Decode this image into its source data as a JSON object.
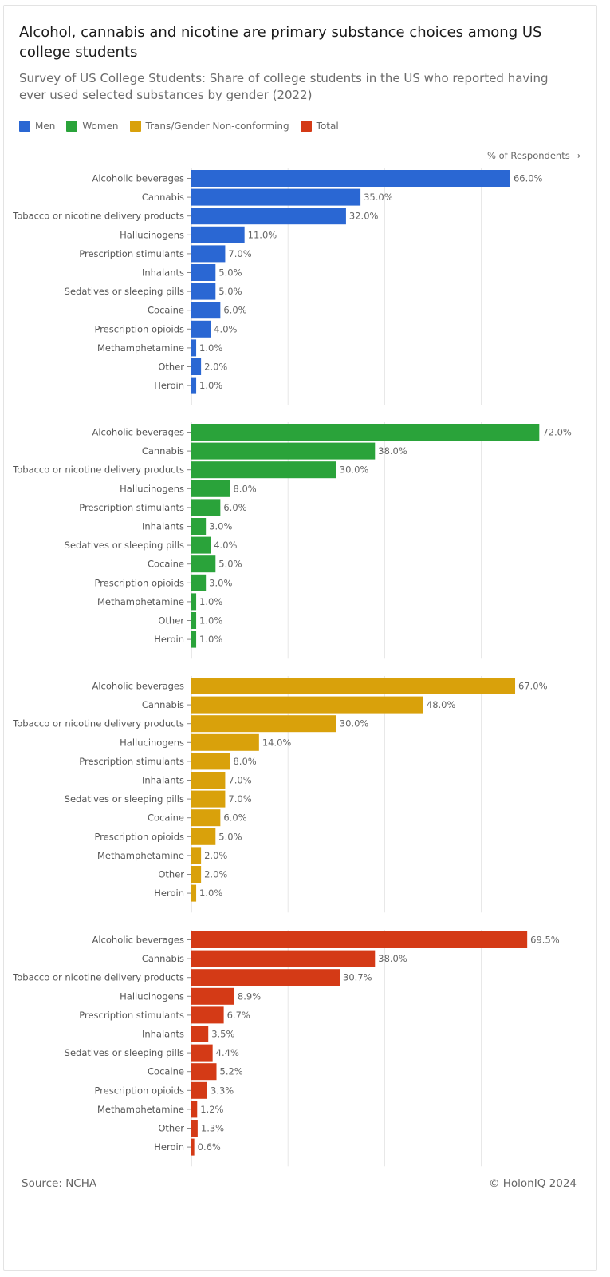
{
  "title": "Alcohol, cannabis and nicotine are primary substance choices among US college students",
  "subtitle": "Survey of US College Students: Share of college students in the US who reported having ever used selected substances by gender (2022)",
  "axis_note": "% of Respondents →",
  "source": "Source: NCHA",
  "copyright": "© HolonIQ 2024",
  "legend": [
    {
      "label": "Men",
      "color": "#2a67d3"
    },
    {
      "label": "Women",
      "color": "#2aa33a"
    },
    {
      "label": "Trans/Gender Non-conforming",
      "color": "#d9a10b"
    },
    {
      "label": "Total",
      "color": "#d43a16"
    }
  ],
  "chart_data": {
    "type": "bar",
    "orientation": "horizontal",
    "x_unit": "% of Respondents",
    "xlim": [
      0,
      75
    ],
    "grid": true,
    "legend_position": "top-left",
    "categories": [
      "Alcoholic beverages",
      "Cannabis",
      "Tobacco or nicotine delivery products",
      "Hallucinogens",
      "Prescription stimulants",
      "Inhalants",
      "Sedatives or sleeping pills",
      "Cocaine",
      "Prescription opioids",
      "Methamphetamine",
      "Other",
      "Heroin"
    ],
    "series": [
      {
        "name": "Men",
        "color": "#2a67d3",
        "values": [
          66.0,
          35.0,
          32.0,
          11.0,
          7.0,
          5.0,
          5.0,
          6.0,
          4.0,
          1.0,
          2.0,
          1.0
        ]
      },
      {
        "name": "Women",
        "color": "#2aa33a",
        "values": [
          72.0,
          38.0,
          30.0,
          8.0,
          6.0,
          3.0,
          4.0,
          5.0,
          3.0,
          1.0,
          1.0,
          1.0
        ]
      },
      {
        "name": "Trans/Gender Non-conforming",
        "color": "#d9a10b",
        "values": [
          67.0,
          48.0,
          30.0,
          14.0,
          8.0,
          7.0,
          7.0,
          6.0,
          5.0,
          2.0,
          2.0,
          1.0
        ]
      },
      {
        "name": "Total",
        "color": "#d43a16",
        "values": [
          69.5,
          38.0,
          30.7,
          8.9,
          6.7,
          3.5,
          4.4,
          5.2,
          3.3,
          1.2,
          1.3,
          0.6
        ]
      }
    ]
  }
}
